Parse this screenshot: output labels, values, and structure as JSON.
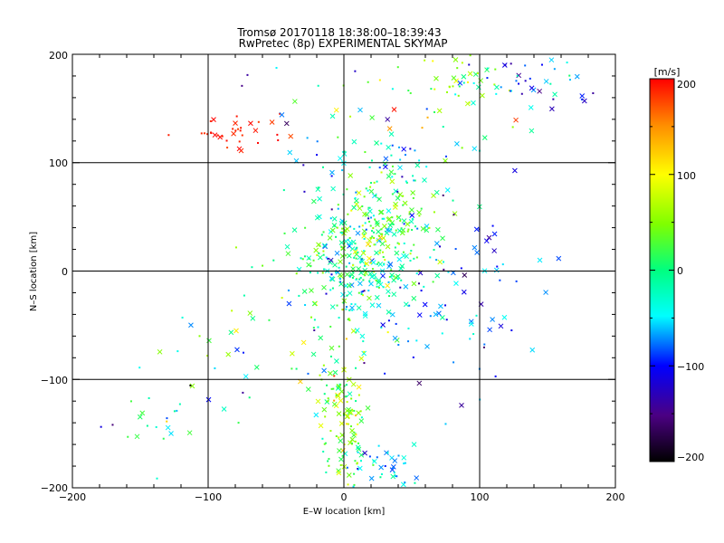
{
  "chart_data": {
    "type": "scatter",
    "title": "Tromsø 20170118 18:38:00–18:39:43",
    "subtitle": "RwPretec (8p) EXPERIMENTAL SKYMAP",
    "xlabel": "E–W location [km]",
    "ylabel": "N–S location [km]",
    "xlim": [
      -200,
      200
    ],
    "ylim": [
      -200,
      200
    ],
    "xticks": [
      "−200",
      "−100",
      "0",
      "100",
      "200"
    ],
    "yticks": [
      "−200",
      "−100",
      "0",
      "100",
      "200"
    ],
    "grid": true,
    "colorbar": {
      "unit": "[m/s]",
      "range": [
        -200,
        200
      ],
      "ticks": [
        "200",
        "100",
        "0",
        "−100",
        "−200"
      ]
    },
    "clusters": [
      {
        "cx": 10,
        "cy": 8,
        "sx": 25,
        "sy": 28,
        "n": 260,
        "v": -10,
        "vs": 45
      },
      {
        "cx": 25,
        "cy": 45,
        "sx": 22,
        "sy": 25,
        "n": 140,
        "v": 30,
        "vs": 35
      },
      {
        "cx": 0,
        "cy": -130,
        "sx": 10,
        "sy": 40,
        "n": 120,
        "v": 40,
        "vs": 40
      },
      {
        "cx": 35,
        "cy": -180,
        "sx": 15,
        "sy": 12,
        "n": 40,
        "v": -60,
        "vs": 35
      },
      {
        "cx": -75,
        "cy": 125,
        "sx": 20,
        "sy": 8,
        "n": 35,
        "v": 190,
        "vs": 15
      },
      {
        "cx": 85,
        "cy": 175,
        "sx": 15,
        "sy": 15,
        "n": 40,
        "v": 40,
        "vs": 40
      },
      {
        "cx": 145,
        "cy": 175,
        "sx": 30,
        "sy": 12,
        "n": 40,
        "v": -90,
        "vs": 40
      },
      {
        "cx": 70,
        "cy": -40,
        "sx": 30,
        "sy": 40,
        "n": 60,
        "v": -80,
        "vs": 30
      },
      {
        "cx": 25,
        "cy": 100,
        "sx": 30,
        "sy": 15,
        "n": 50,
        "v": -40,
        "vs": 45
      },
      {
        "cx": -45,
        "cy": -70,
        "sx": 40,
        "sy": 40,
        "n": 60,
        "v": 10,
        "vs": 80
      },
      {
        "cx": 70,
        "cy": 10,
        "sx": 40,
        "sy": 25,
        "n": 40,
        "v": -90,
        "vs": 40
      },
      {
        "cx": -140,
        "cy": -130,
        "sx": 25,
        "sy": 20,
        "n": 20,
        "v": -50,
        "vs": 70
      },
      {
        "cx": 50,
        "cy": 150,
        "sx": 50,
        "sy": 30,
        "n": 40,
        "v": 0,
        "vs": 100
      }
    ]
  }
}
